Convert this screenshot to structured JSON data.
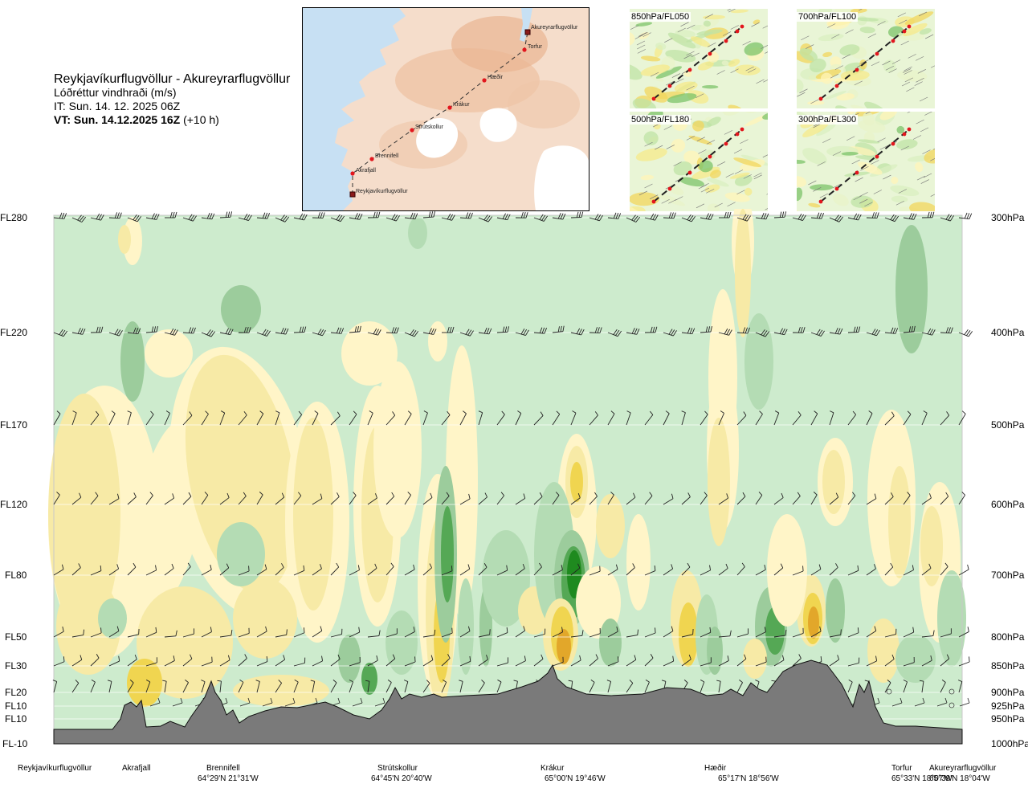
{
  "header": {
    "route": "Reykjavíkurflugvöllur - Akureyrarflugvöllur",
    "parameter": "Lóðréttur vindhraði (m/s)",
    "issue_time": "IT: Sun. 14. 12. 2025 06Z",
    "valid_time_bold": "VT: Sun. 14.12.2025 16Z",
    "valid_time_offset": "(+10 h)"
  },
  "map": {
    "points": [
      {
        "name": "Akureyrarflugvöllur",
        "type": "airport"
      },
      {
        "name": "Torfur",
        "type": "waypoint"
      },
      {
        "name": "Hæðir",
        "type": "waypoint"
      },
      {
        "name": "Krákur",
        "type": "waypoint"
      },
      {
        "name": "Strútskollur",
        "type": "waypoint"
      },
      {
        "name": "Brennifell",
        "type": "waypoint"
      },
      {
        "name": "Akrafjall",
        "type": "waypoint"
      },
      {
        "name": "Reykjavíkurflugvöllur",
        "type": "airport"
      }
    ]
  },
  "mini_maps": [
    {
      "label": "850hPa/FL050"
    },
    {
      "label": "700hPa/FL100"
    },
    {
      "label": "500hPa/FL180"
    },
    {
      "label": "300hPa/FL300"
    }
  ],
  "chart_data": {
    "type": "heatmap",
    "title": "Lóðréttur vindhraði (m/s)",
    "y_levels": [
      {
        "fl": "FL280",
        "hpa": "300hPa"
      },
      {
        "fl": "FL220",
        "hpa": "400hPa"
      },
      {
        "fl": "FL170",
        "hpa": "500hPa"
      },
      {
        "fl": "FL120",
        "hpa": "600hPa"
      },
      {
        "fl": "FL80",
        "hpa": "700hPa"
      },
      {
        "fl": "FL50",
        "hpa": "800hPa"
      },
      {
        "fl": "FL30",
        "hpa": "850hPa"
      },
      {
        "fl": "FL20",
        "hpa": "900hPa"
      },
      {
        "fl": "FL10",
        "hpa": "925hPa"
      },
      {
        "fl": "FL10",
        "hpa": "950hPa"
      },
      {
        "fl": "FL-10",
        "hpa": "1000hPa"
      }
    ],
    "locations": [
      {
        "name": "Reykjavíkurflugvöllur",
        "coord": ""
      },
      {
        "name": "Akrafjall",
        "coord": ""
      },
      {
        "name": "Brennifell",
        "coord": "64°29'N 21°31'W"
      },
      {
        "name": "Strútskollur",
        "coord": "64°45'N 20°40'W"
      },
      {
        "name": "Krákur",
        "coord": "65°00'N 19°46'W"
      },
      {
        "name": "Hæðir",
        "coord": "65°17'N 18°56'W"
      },
      {
        "name": "Torfur",
        "coord": "65°33'N 18°07'W"
      },
      {
        "name": "Akureyrarflugvöllur",
        "coord": "65°39'N 18°04'W"
      }
    ],
    "colors": {
      "background_zero": "#cdebcd",
      "updraft_weak": "#fff5c8",
      "updraft_light": "#f7eaa6",
      "updraft_moderate": "#f0d550",
      "updraft_strong": "#e2a72a",
      "downdraft_weak": "#b4dcb4",
      "downdraft_light": "#9ccc9c",
      "downdraft_moderate": "#55a855",
      "downdraft_strong": "#1f8a1f",
      "terrain": "#787878"
    }
  }
}
